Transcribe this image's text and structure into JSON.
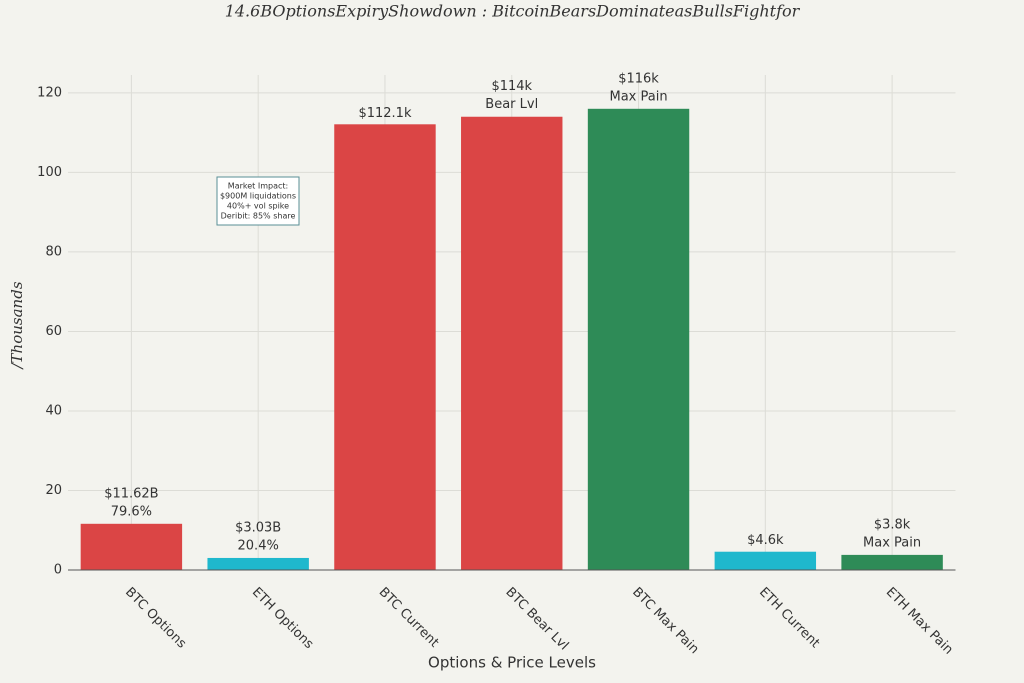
{
  "chart_data": {
    "type": "bar",
    "title": "14.6BOptionsExpiryShowdown : BitcoinBearsDominateasBullsFightfor",
    "x_label": "Options & Price Levels",
    "y_label": "/Thousands",
    "categories": [
      "BTC Options",
      "ETH Options",
      "BTC Current",
      "BTC Bear Lvl",
      "BTC Max Pain",
      "ETH Current",
      "ETH Max Pain"
    ],
    "values": [
      11.62,
      3.03,
      112.1,
      114,
      116,
      4.6,
      3.8
    ],
    "value_labels": [
      "$11.62B",
      "$3.03B",
      "$112.1k",
      "$114k",
      "$116k",
      "$4.6k",
      "$3.8k"
    ],
    "value_notes": [
      "79.6%",
      "20.4%",
      null,
      "Bear Lvl",
      "Max Pain",
      null,
      "Max Pain"
    ],
    "colors": [
      "#db4545",
      "#1fb8cd",
      "#db4545",
      "#db4545",
      "#2e8b57",
      "#1fb8cd",
      "#2e8b57"
    ],
    "ylim": [
      0,
      124.5
    ],
    "yticks": [
      0,
      20,
      40,
      60,
      80,
      100,
      120
    ],
    "grid": true,
    "annotation": [
      "Market Impact:",
      "$900M liquidations",
      "40%+ vol spike",
      "Deribit: 85% share"
    ]
  }
}
